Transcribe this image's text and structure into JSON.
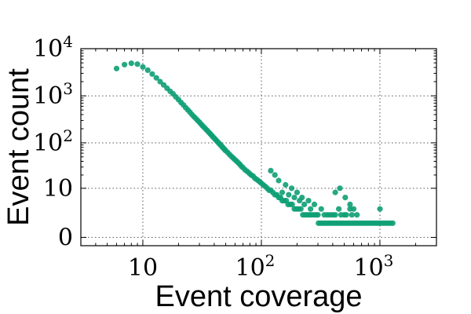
{
  "chart_data": {
    "type": "scatter",
    "xlabel": "Event coverage",
    "ylabel": "Event count",
    "x_scale": "log",
    "y_scale": "symlog",
    "xlim": [
      3,
      3000
    ],
    "ylim": [
      -0.5,
      10000
    ],
    "x_ticks": [
      {
        "value": 10,
        "base": "10",
        "exp": ""
      },
      {
        "value": 100,
        "base": "10",
        "exp": "2"
      },
      {
        "value": 1000,
        "base": "10",
        "exp": "3"
      }
    ],
    "y_ticks": [
      {
        "value": 0,
        "base": "0",
        "exp": ""
      },
      {
        "value": 10,
        "base": "10",
        "exp": ""
      },
      {
        "value": 100,
        "base": "10",
        "exp": "2"
      },
      {
        "value": 1000,
        "base": "10",
        "exp": "3"
      },
      {
        "value": 10000,
        "base": "10",
        "exp": "4"
      }
    ],
    "grid": true,
    "marker_color": "#0e9e74",
    "series": [
      {
        "points": [
          [
            6,
            3800
          ],
          [
            7,
            4600
          ],
          [
            8,
            4900
          ],
          [
            9,
            4700
          ],
          [
            10,
            4100
          ],
          [
            11,
            3500
          ],
          [
            12,
            2900
          ],
          [
            13,
            2400
          ],
          [
            14,
            2000
          ],
          [
            15,
            1700
          ],
          [
            16,
            1450
          ],
          [
            17,
            1250
          ],
          [
            18,
            1100
          ],
          [
            19,
            950
          ],
          [
            20,
            830
          ],
          [
            21,
            720
          ],
          [
            22,
            640
          ],
          [
            23,
            560
          ],
          [
            24,
            500
          ],
          [
            25,
            450
          ],
          [
            26,
            400
          ],
          [
            27,
            360
          ],
          [
            28,
            330
          ],
          [
            29,
            300
          ],
          [
            30,
            275
          ],
          [
            31,
            250
          ],
          [
            32,
            230
          ],
          [
            33,
            212
          ],
          [
            34,
            196
          ],
          [
            35,
            182
          ],
          [
            36,
            168
          ],
          [
            37,
            156
          ],
          [
            38,
            145
          ],
          [
            39,
            135
          ],
          [
            40,
            126
          ],
          [
            41,
            118
          ],
          [
            42,
            110
          ],
          [
            43,
            103
          ],
          [
            44,
            97
          ],
          [
            45,
            91
          ],
          [
            46,
            86
          ],
          [
            47,
            81
          ],
          [
            48,
            76
          ],
          [
            49,
            72
          ],
          [
            50,
            68
          ],
          [
            52,
            62
          ],
          [
            54,
            56
          ],
          [
            56,
            51
          ],
          [
            58,
            47
          ],
          [
            60,
            43
          ],
          [
            62,
            40
          ],
          [
            64,
            37
          ],
          [
            66,
            34
          ],
          [
            68,
            31
          ],
          [
            70,
            29
          ],
          [
            73,
            26
          ],
          [
            76,
            24
          ],
          [
            79,
            22
          ],
          [
            82,
            20
          ],
          [
            85,
            19
          ],
          [
            88,
            17
          ],
          [
            91,
            16
          ],
          [
            94,
            15
          ],
          [
            97,
            14
          ],
          [
            100,
            13
          ],
          [
            104,
            12
          ],
          [
            108,
            11
          ],
          [
            112,
            10
          ],
          [
            116,
            9
          ],
          [
            120,
            9
          ],
          [
            125,
            8
          ],
          [
            130,
            7
          ],
          [
            135,
            7
          ],
          [
            140,
            6
          ],
          [
            145,
            6
          ],
          [
            150,
            5
          ],
          [
            156,
            5
          ],
          [
            162,
            5
          ],
          [
            168,
            4
          ],
          [
            175,
            4
          ],
          [
            182,
            4
          ],
          [
            190,
            3
          ],
          [
            198,
            3
          ],
          [
            206,
            3
          ],
          [
            215,
            3
          ],
          [
            224,
            2
          ],
          [
            234,
            2
          ],
          [
            244,
            2
          ],
          [
            255,
            2
          ],
          [
            266,
            2
          ],
          [
            278,
            2
          ],
          [
            290,
            2
          ],
          [
            303,
            1
          ],
          [
            317,
            1
          ],
          [
            331,
            1
          ],
          [
            346,
            1
          ],
          [
            362,
            1
          ],
          [
            378,
            1
          ],
          [
            395,
            1
          ],
          [
            413,
            1
          ],
          [
            432,
            1
          ],
          [
            452,
            1
          ],
          [
            473,
            1
          ],
          [
            495,
            1
          ],
          [
            518,
            1
          ],
          [
            542,
            1
          ],
          [
            567,
            1
          ],
          [
            593,
            1
          ],
          [
            620,
            1
          ],
          [
            648,
            1
          ],
          [
            678,
            1
          ],
          [
            710,
            1
          ],
          [
            743,
            1
          ],
          [
            777,
            1
          ],
          [
            813,
            1
          ],
          [
            851,
            1
          ],
          [
            891,
            1
          ],
          [
            933,
            1
          ],
          [
            977,
            1
          ],
          [
            1023,
            1
          ],
          [
            1071,
            1
          ],
          [
            1121,
            1
          ],
          [
            1173,
            1
          ],
          [
            1227,
            1
          ],
          [
            1284,
            1
          ],
          [
            120,
            25
          ],
          [
            130,
            20
          ],
          [
            140,
            15
          ],
          [
            160,
            12
          ],
          [
            180,
            10
          ],
          [
            200,
            8
          ],
          [
            220,
            6
          ],
          [
            250,
            5
          ],
          [
            280,
            4
          ],
          [
            320,
            3
          ],
          [
            360,
            2
          ],
          [
            400,
            2
          ],
          [
            450,
            3
          ],
          [
            500,
            2
          ],
          [
            560,
            3
          ],
          [
            1000,
            3
          ],
          [
            150,
            8
          ],
          [
            170,
            7
          ],
          [
            190,
            6
          ],
          [
            210,
            5
          ],
          [
            230,
            4
          ],
          [
            260,
            3
          ],
          [
            300,
            2
          ],
          [
            340,
            2
          ],
          [
            380,
            2
          ],
          [
            420,
            2
          ],
          [
            470,
            2
          ],
          [
            520,
            2
          ],
          [
            580,
            2
          ],
          [
            640,
            2
          ],
          [
            420,
            8
          ],
          [
            460,
            10
          ],
          [
            510,
            6
          ],
          [
            560,
            4
          ],
          [
            600,
            3
          ]
        ]
      }
    ]
  }
}
